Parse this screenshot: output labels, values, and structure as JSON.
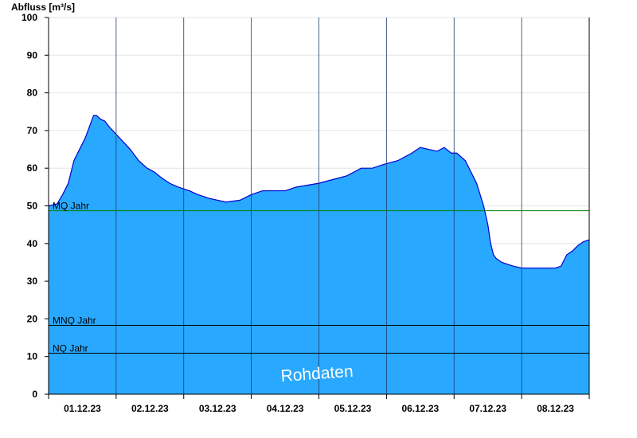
{
  "chart_data": {
    "type": "area",
    "title": "",
    "ylabel": "Abfluss [m³/s]",
    "xlabel": "",
    "ylim": [
      0,
      100
    ],
    "yticks": [
      0,
      10,
      20,
      30,
      40,
      50,
      60,
      70,
      80,
      90,
      100
    ],
    "xlim_days": [
      0,
      8
    ],
    "date_labels": [
      "01.12.23",
      "02.12.23",
      "03.12.23",
      "04.12.23",
      "05.12.23",
      "06.12.23",
      "07.12.23",
      "08.12.23"
    ],
    "grid": true,
    "fill_color": "#29A8FF",
    "line_color": "#0000CC",
    "reference_lines": [
      {
        "label": "MQ Jahr",
        "value": 48.7,
        "color": "#008000"
      },
      {
        "label": "MNQ Jahr",
        "value": 18.3,
        "color": "#000000"
      },
      {
        "label": "NQ Jahr",
        "value": 10.9,
        "color": "#000000"
      }
    ],
    "watermark": "Rohdaten",
    "series": [
      {
        "x": [
          "01.12.23 00:00",
          "01.12.23 03:00",
          "01.12.23 05:00",
          "01.12.23 07:00",
          "01.12.23 09:00",
          "01.12.23 11:00",
          "01.12.23 13:00",
          "01.12.23 14:30",
          "01.12.23 16:00",
          "01.12.23 17:00",
          "01.12.23 18:30",
          "01.12.23 20:00",
          "01.12.23 21:30",
          "02.12.23 00:00",
          "02.12.23 02:30",
          "02.12.23 05:00",
          "02.12.23 08:00",
          "02.12.23 11:00",
          "02.12.23 13:30",
          "02.12.23 16:00",
          "02.12.23 19:00",
          "02.12.23 22:00",
          "03.12.23 02:00",
          "03.12.23 05:00",
          "03.12.23 09:00",
          "03.12.23 15:00",
          "03.12.23 20:00",
          "04.12.23 00:00",
          "04.12.23 04:00",
          "04.12.23 08:00",
          "04.12.23 12:00",
          "04.12.23 16:00",
          "04.12.23 20:00",
          "05.12.23 00:00",
          "05.12.23 05:00",
          "05.12.23 10:00",
          "05.12.23 15:00",
          "05.12.23 19:00",
          "05.12.23 23:00",
          "06.12.23 04:00",
          "06.12.23 09:00",
          "06.12.23 12:00",
          "06.12.23 15:00",
          "06.12.23 18:00",
          "06.12.23 20:30",
          "06.12.23 23:00",
          "07.12.23 01:00",
          "07.12.23 04:00",
          "07.12.23 08:00",
          "07.12.23 10:30",
          "07.12.23 12:00",
          "07.12.23 13:00",
          "07.12.23 14:00",
          "07.12.23 15:00",
          "07.12.23 17:00",
          "07.12.23 19:00",
          "07.12.23 21:00",
          "08.12.23 00:00",
          "08.12.23 03:00",
          "08.12.23 06:00",
          "08.12.23 09:00",
          "08.12.23 12:00",
          "08.12.23 14:00",
          "08.12.23 16:00",
          "08.12.23 18:00",
          "08.12.23 20:00",
          "08.12.23 22:00",
          "08.12.23 24:00"
        ],
        "y": [
          50,
          50.5,
          53,
          56,
          62,
          65,
          68,
          71,
          74,
          74,
          73,
          72.5,
          71,
          69,
          67,
          65,
          62,
          60,
          59,
          57.5,
          56,
          55,
          54,
          53,
          52,
          51,
          51.5,
          53,
          54,
          54,
          54,
          55,
          55.5,
          56,
          57,
          58,
          60,
          60,
          61,
          62,
          64,
          65.5,
          65,
          64.5,
          65.5,
          64,
          64,
          62,
          56,
          50,
          45,
          40,
          37,
          36,
          35,
          34.5,
          34,
          33.5,
          33.5,
          33.5,
          33.5,
          33.5,
          34,
          37,
          38,
          39.5,
          40.5,
          41
        ]
      }
    ]
  }
}
